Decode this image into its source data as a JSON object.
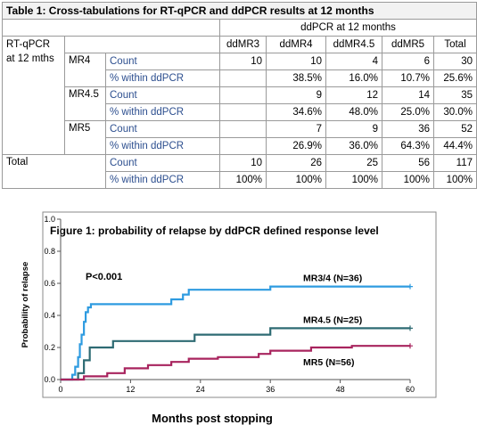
{
  "table": {
    "caption": "Table 1: Cross-tabulations for RT-qPCR and ddPCR results at 12 months",
    "group_header": "ddPCR at 12 months",
    "columns": [
      "ddMR3",
      "ddMR4",
      "ddMR4.5",
      "ddMR5",
      "Total"
    ],
    "row_group_label": "RT-qPCR at 12 mths",
    "rows": [
      {
        "group": "MR4",
        "count_label": "Count",
        "counts": [
          "10",
          "10",
          "4",
          "6",
          "30"
        ],
        "pct_label": "% within ddPCR",
        "pcts": [
          "",
          "38.5%",
          "16.0%",
          "10.7%",
          "25.6%"
        ]
      },
      {
        "group": "MR4.5",
        "count_label": "Count",
        "counts": [
          "",
          "9",
          "12",
          "14",
          "35"
        ],
        "pct_label": "% within ddPCR",
        "pcts": [
          "",
          "34.6%",
          "48.0%",
          "25.0%",
          "30.0%"
        ]
      },
      {
        "group": "MR5",
        "count_label": "Count",
        "counts": [
          "",
          "7",
          "9",
          "36",
          "52"
        ],
        "pct_label": "% within ddPCR",
        "pcts": [
          "",
          "26.9%",
          "36.0%",
          "64.3%",
          "44.4%"
        ]
      }
    ],
    "total": {
      "label": "Total",
      "count_label": "Count",
      "counts": [
        "10",
        "26",
        "25",
        "56",
        "117"
      ],
      "pct_label": "% within ddPCR",
      "pcts": [
        "100%",
        "100%",
        "100%",
        "100%",
        "100%"
      ]
    }
  },
  "chart_data": {
    "type": "line",
    "step": true,
    "title": "Figure 1: probability of relapse by ddPCR defined response level",
    "xlabel": "Months post stopping",
    "ylabel": "Probability of relapse",
    "xlim": [
      0,
      60
    ],
    "ylim": [
      0,
      1.0
    ],
    "xticks": [
      0,
      12,
      24,
      36,
      48,
      60
    ],
    "yticks": [
      0.0,
      0.2,
      0.4,
      0.6,
      0.8,
      1.0
    ],
    "ytick_labels": [
      "0.0",
      "0.2",
      "0.4",
      "0.6",
      "0.8",
      "1.0"
    ],
    "grid": false,
    "annotation": "P<0.001",
    "series": [
      {
        "name": "MR3/4 (N=36)",
        "color": "#2e9be0",
        "x": [
          0,
          2,
          2.5,
          3,
          3.3,
          3.6,
          4,
          4.3,
          4.7,
          5.2,
          19,
          21,
          22,
          24,
          36,
          60
        ],
        "y": [
          0,
          0.03,
          0.08,
          0.14,
          0.22,
          0.28,
          0.36,
          0.42,
          0.45,
          0.47,
          0.5,
          0.53,
          0.56,
          0.56,
          0.58,
          0.58
        ]
      },
      {
        "name": "MR4.5 (N=25)",
        "color": "#2e6b73",
        "x": [
          0,
          3,
          4,
          5,
          9,
          23,
          36,
          60
        ],
        "y": [
          0,
          0.04,
          0.12,
          0.2,
          0.24,
          0.28,
          0.32,
          0.32
        ]
      },
      {
        "name": "MR5 (N=56)",
        "color": "#a8245e",
        "x": [
          0,
          4,
          8,
          11,
          15,
          19,
          22,
          27,
          34,
          36,
          43,
          50,
          60
        ],
        "y": [
          0,
          0.02,
          0.04,
          0.07,
          0.09,
          0.11,
          0.13,
          0.14,
          0.16,
          0.18,
          0.2,
          0.21,
          0.21
        ]
      }
    ]
  }
}
